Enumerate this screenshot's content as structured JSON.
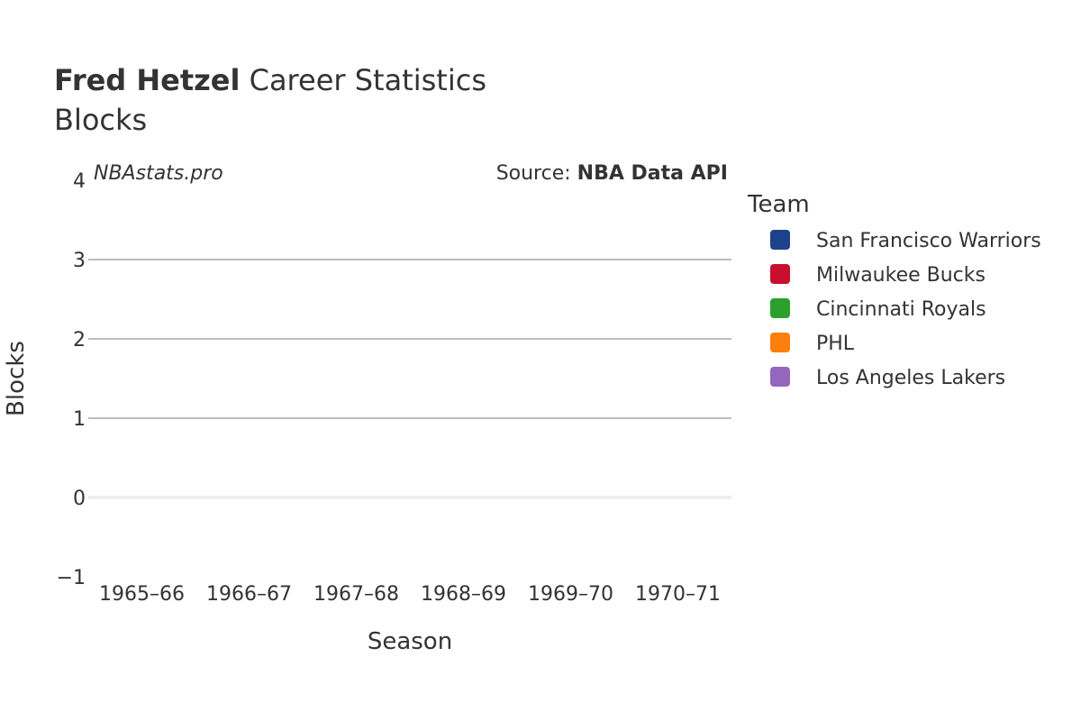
{
  "chart_data": {
    "type": "line",
    "title_bold": "Fred Hetzel",
    "title_rest": " Career Statistics",
    "subtitle": "Blocks",
    "watermark": "NBAstats.pro",
    "source_prefix": "Source: ",
    "source_name": "NBA Data API",
    "xlabel": "Season",
    "ylabel": "Blocks",
    "categories": [
      "1965–66",
      "1966–67",
      "1967–68",
      "1968–69",
      "1969–70",
      "1970–71"
    ],
    "ylim": [
      -1,
      4
    ],
    "yticks": [
      -1,
      0,
      1,
      2,
      3,
      4
    ],
    "ytick_labels": [
      "−1",
      "0",
      "1",
      "2",
      "3",
      "4"
    ],
    "grid": true,
    "legend": {
      "title": "Team",
      "placement": "right",
      "items": [
        {
          "name": "San Francisco Warriors",
          "color": "#1d428a"
        },
        {
          "name": "Milwaukee Bucks",
          "color": "#c8102e"
        },
        {
          "name": "Cincinnati Royals",
          "color": "#2ca02c"
        },
        {
          "name": "PHL",
          "color": "#ff7f0e"
        },
        {
          "name": "Los Angeles Lakers",
          "color": "#9467bd"
        }
      ]
    },
    "series": []
  }
}
